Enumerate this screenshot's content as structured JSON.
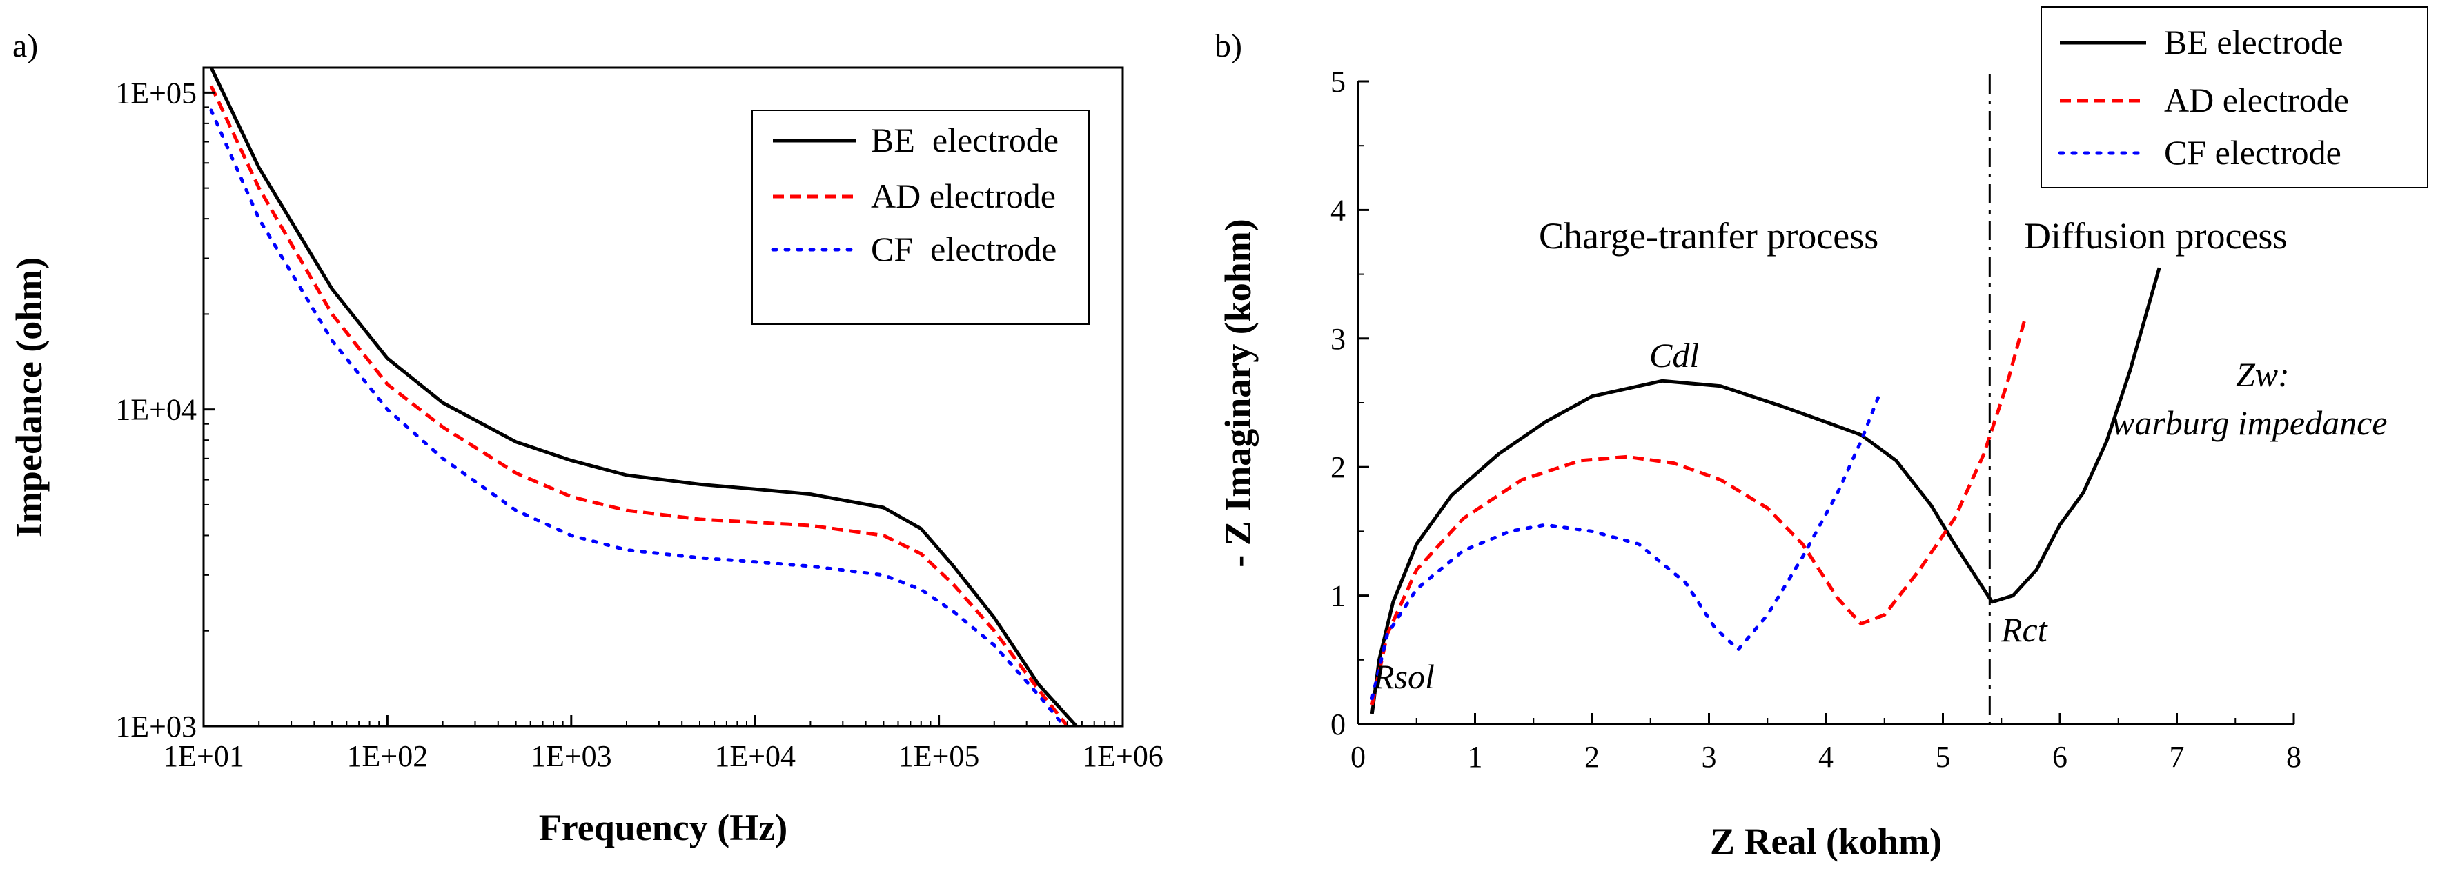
{
  "chart_data": [
    {
      "panel": "a)",
      "type": "line",
      "x_scale": "log",
      "y_scale": "log",
      "xlabel": "Frequency (Hz)",
      "ylabel": "Impedance (ohm)",
      "xlim": [
        10,
        1000000
      ],
      "ylim": [
        1000,
        120000
      ],
      "x_ticks": [
        "1E+01",
        "1E+02",
        "1E+03",
        "1E+04",
        "1E+05",
        "1E+06"
      ],
      "y_ticks": [
        "1E+03",
        "1E+04",
        "1E+05"
      ],
      "legend": {
        "placement": "top-right"
      },
      "series": [
        {
          "name": "BE  electrode",
          "color": "#000000",
          "style": "solid",
          "points": [
            [
              11,
              120000
            ],
            [
              20,
              58000
            ],
            [
              50,
              24000
            ],
            [
              100,
              14500
            ],
            [
              200,
              10500
            ],
            [
              500,
              7900
            ],
            [
              1000,
              6900
            ],
            [
              2000,
              6200
            ],
            [
              5000,
              5800
            ],
            [
              10000,
              5600
            ],
            [
              20000,
              5400
            ],
            [
              50000,
              4900
            ],
            [
              80000,
              4200
            ],
            [
              120000,
              3200
            ],
            [
              200000,
              2200
            ],
            [
              350000,
              1350
            ],
            [
              560000,
              1000
            ]
          ]
        },
        {
          "name": "AD electrode",
          "color": "#ff0000",
          "style": "dashed",
          "points": [
            [
              11,
              105000
            ],
            [
              20,
              50000
            ],
            [
              50,
              20000
            ],
            [
              100,
              12000
            ],
            [
              200,
              8800
            ],
            [
              500,
              6300
            ],
            [
              1000,
              5300
            ],
            [
              2000,
              4800
            ],
            [
              5000,
              4500
            ],
            [
              10000,
              4400
            ],
            [
              20000,
              4300
            ],
            [
              50000,
              4000
            ],
            [
              80000,
              3500
            ],
            [
              120000,
              2800
            ],
            [
              200000,
              2000
            ],
            [
              350000,
              1300
            ],
            [
              500000,
              1000
            ]
          ]
        },
        {
          "name": "CF  electrode",
          "color": "#0000ff",
          "style": "dotted",
          "points": [
            [
              11,
              88000
            ],
            [
              20,
              40000
            ],
            [
              50,
              16500
            ],
            [
              100,
              10000
            ],
            [
              200,
              7000
            ],
            [
              500,
              4800
            ],
            [
              1000,
              4000
            ],
            [
              2000,
              3600
            ],
            [
              5000,
              3400
            ],
            [
              10000,
              3300
            ],
            [
              20000,
              3200
            ],
            [
              50000,
              3000
            ],
            [
              80000,
              2700
            ],
            [
              120000,
              2300
            ],
            [
              200000,
              1800
            ],
            [
              350000,
              1250
            ],
            [
              480000,
              1000
            ]
          ]
        }
      ]
    },
    {
      "panel": "b)",
      "type": "line",
      "xlabel": "Z Real (kohm)",
      "ylabel": "- Z Imaginary (kohm)",
      "xlim": [
        0,
        8
      ],
      "ylim": [
        0,
        5
      ],
      "x_ticks": [
        "0",
        "1",
        "2",
        "3",
        "4",
        "5",
        "6",
        "7",
        "8"
      ],
      "y_ticks": [
        "0",
        "1",
        "2",
        "3",
        "4",
        "5"
      ],
      "legend": {
        "placement": "top-right"
      },
      "vline": {
        "x": 5.4,
        "style": "dash-dot"
      },
      "annotations": {
        "left_region": "Charge-tranfer process",
        "right_region": "Diffusion process",
        "cdl": "Cdl",
        "rsol": "Rsol",
        "rct": "Rct",
        "zw_line1": "Zw:",
        "zw_line2": "warburg impedance"
      },
      "series": [
        {
          "name": "BE electrode",
          "color": "#000000",
          "style": "solid",
          "points": [
            [
              0.12,
              0.08
            ],
            [
              0.18,
              0.5
            ],
            [
              0.3,
              0.95
            ],
            [
              0.5,
              1.4
            ],
            [
              0.8,
              1.78
            ],
            [
              1.2,
              2.1
            ],
            [
              1.6,
              2.35
            ],
            [
              2.0,
              2.55
            ],
            [
              2.6,
              2.67
            ],
            [
              3.1,
              2.63
            ],
            [
              3.6,
              2.48
            ],
            [
              4.0,
              2.35
            ],
            [
              4.3,
              2.25
            ],
            [
              4.6,
              2.05
            ],
            [
              4.9,
              1.7
            ],
            [
              5.1,
              1.4
            ],
            [
              5.3,
              1.12
            ],
            [
              5.42,
              0.95
            ],
            [
              5.6,
              1.0
            ],
            [
              5.8,
              1.2
            ],
            [
              6.0,
              1.55
            ],
            [
              6.2,
              1.8
            ],
            [
              6.4,
              2.2
            ],
            [
              6.6,
              2.75
            ],
            [
              6.85,
              3.55
            ]
          ]
        },
        {
          "name": "AD electrode",
          "color": "#ff0000",
          "style": "dashed",
          "points": [
            [
              0.12,
              0.15
            ],
            [
              0.25,
              0.7
            ],
            [
              0.5,
              1.2
            ],
            [
              0.9,
              1.6
            ],
            [
              1.4,
              1.9
            ],
            [
              1.9,
              2.05
            ],
            [
              2.3,
              2.08
            ],
            [
              2.7,
              2.03
            ],
            [
              3.1,
              1.9
            ],
            [
              3.5,
              1.68
            ],
            [
              3.8,
              1.4
            ],
            [
              4.1,
              0.98
            ],
            [
              4.3,
              0.78
            ],
            [
              4.5,
              0.85
            ],
            [
              4.8,
              1.2
            ],
            [
              5.1,
              1.6
            ],
            [
              5.35,
              2.1
            ],
            [
              5.55,
              2.65
            ],
            [
              5.7,
              3.15
            ]
          ]
        },
        {
          "name": "CF electrode",
          "color": "#0000ff",
          "style": "dotted",
          "points": [
            [
              0.12,
              0.2
            ],
            [
              0.25,
              0.7
            ],
            [
              0.5,
              1.05
            ],
            [
              0.9,
              1.35
            ],
            [
              1.3,
              1.5
            ],
            [
              1.6,
              1.55
            ],
            [
              2.0,
              1.5
            ],
            [
              2.4,
              1.4
            ],
            [
              2.8,
              1.1
            ],
            [
              3.05,
              0.75
            ],
            [
              3.25,
              0.58
            ],
            [
              3.5,
              0.85
            ],
            [
              3.8,
              1.3
            ],
            [
              4.1,
              1.8
            ],
            [
              4.3,
              2.2
            ],
            [
              4.45,
              2.55
            ]
          ]
        }
      ]
    }
  ]
}
